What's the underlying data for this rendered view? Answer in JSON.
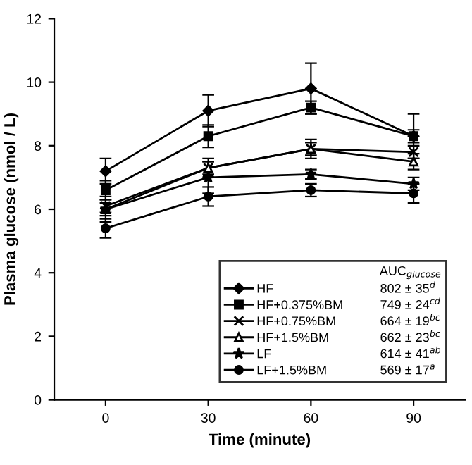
{
  "chart_data": {
    "type": "line",
    "xlabel": "Time (minute)",
    "ylabel": "Plasma glucose (nmol / L)",
    "x": [
      0,
      30,
      60,
      90
    ],
    "xlim": [
      -15,
      105
    ],
    "xticks": [
      0,
      30,
      60,
      90
    ],
    "ylim": [
      0,
      12
    ],
    "yticks": [
      0,
      2,
      4,
      6,
      8,
      10,
      12
    ],
    "grid": false,
    "legend": "bottom right",
    "legend_title": "AUC$_{glucose}$",
    "series": [
      {
        "name": "HF",
        "color": "#000000",
        "marker": "diamond",
        "values": [
          7.2,
          9.1,
          9.8,
          8.3
        ],
        "errors": [
          0.4,
          0.5,
          0.8,
          0.7
        ]
      },
      {
        "name": "HF+0.375%BM",
        "color": "#000000",
        "marker": "square",
        "values": [
          6.6,
          8.3,
          9.2,
          8.3
        ],
        "errors": [
          0.3,
          0.35,
          0.2,
          0.2
        ]
      },
      {
        "name": "HF+0.75%BM",
        "color": "#000000",
        "marker": "cross",
        "values": [
          6.1,
          7.3,
          7.9,
          7.8
        ],
        "errors": [
          0.2,
          0.2,
          0.3,
          0.2
        ]
      },
      {
        "name": "HF+1.5%BM",
        "color": "#000000",
        "marker": "triangle",
        "values": [
          6.0,
          7.3,
          7.9,
          7.5
        ],
        "errors": [
          0.2,
          0.3,
          0.2,
          0.25
        ]
      },
      {
        "name": "LF",
        "color": "#000000",
        "marker": "star",
        "values": [
          6.0,
          7.0,
          7.1,
          6.8
        ],
        "errors": [
          0.4,
          0.5,
          0.15,
          0.2
        ]
      },
      {
        "name": "LF+1.5%BM",
        "color": "#000000",
        "marker": "circle",
        "values": [
          5.4,
          6.4,
          6.6,
          6.5
        ],
        "errors": [
          0.3,
          0.3,
          0.2,
          0.3
        ]
      }
    ],
    "annotations": [
      "802 ± 35$^{d}$",
      "749 ± 24$^{cd}$",
      "664 ± 19$^{bc}$",
      "662 ± 23$^{bc}$",
      "614 ± 41$^{ab}$",
      "569 ± 17$^{a}$"
    ]
  }
}
